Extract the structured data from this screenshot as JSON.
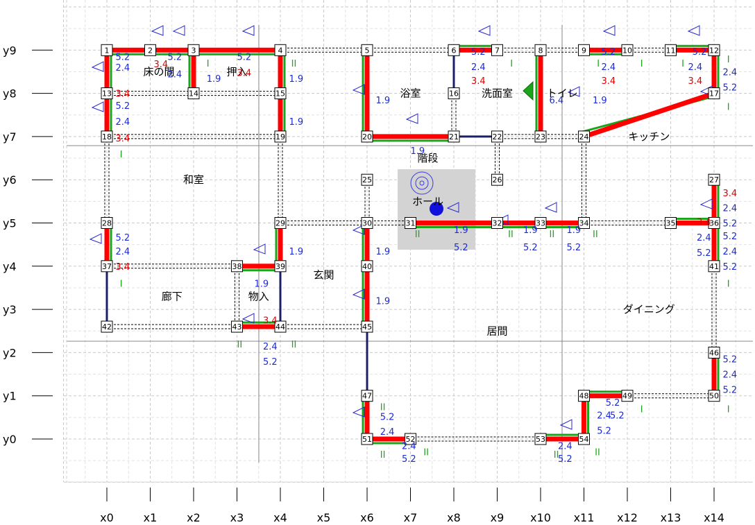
{
  "axes": {
    "x": [
      "x0",
      "x1",
      "x2",
      "x3",
      "x4",
      "x5",
      "x6",
      "x7",
      "x8",
      "x9",
      "x10",
      "x11",
      "x12",
      "x13",
      "x14"
    ],
    "y": [
      "y0",
      "y1",
      "y2",
      "y3",
      "y4",
      "y5",
      "y6",
      "y7",
      "y8",
      "y9"
    ]
  },
  "nodes": [
    {
      "id": "1",
      "gx": 0,
      "gy": 9
    },
    {
      "id": "2",
      "gx": 1,
      "gy": 9
    },
    {
      "id": "3",
      "gx": 2,
      "gy": 9
    },
    {
      "id": "4",
      "gx": 4,
      "gy": 9
    },
    {
      "id": "5",
      "gx": 6,
      "gy": 9
    },
    {
      "id": "6",
      "gx": 8,
      "gy": 9
    },
    {
      "id": "7",
      "gx": 9,
      "gy": 9
    },
    {
      "id": "8",
      "gx": 10,
      "gy": 9
    },
    {
      "id": "9",
      "gx": 11,
      "gy": 9
    },
    {
      "id": "10",
      "gx": 12,
      "gy": 9
    },
    {
      "id": "11",
      "gx": 13,
      "gy": 9
    },
    {
      "id": "12",
      "gx": 14,
      "gy": 9
    },
    {
      "id": "13",
      "gx": 0,
      "gy": 8
    },
    {
      "id": "14",
      "gx": 2,
      "gy": 8
    },
    {
      "id": "15",
      "gx": 4,
      "gy": 8
    },
    {
      "id": "16",
      "gx": 8,
      "gy": 8
    },
    {
      "id": "17",
      "gx": 14,
      "gy": 8
    },
    {
      "id": "18",
      "gx": 0,
      "gy": 7
    },
    {
      "id": "19",
      "gx": 4,
      "gy": 7
    },
    {
      "id": "20",
      "gx": 6,
      "gy": 7
    },
    {
      "id": "21",
      "gx": 8,
      "gy": 7
    },
    {
      "id": "22",
      "gx": 9,
      "gy": 7
    },
    {
      "id": "23",
      "gx": 10,
      "gy": 7
    },
    {
      "id": "24",
      "gx": 11,
      "gy": 7
    },
    {
      "id": "25",
      "gx": 6,
      "gy": 6
    },
    {
      "id": "26",
      "gx": 9,
      "gy": 6
    },
    {
      "id": "27",
      "gx": 14,
      "gy": 6
    },
    {
      "id": "28",
      "gx": 0,
      "gy": 5
    },
    {
      "id": "29",
      "gx": 4,
      "gy": 5
    },
    {
      "id": "30",
      "gx": 6,
      "gy": 5
    },
    {
      "id": "31",
      "gx": 7,
      "gy": 5
    },
    {
      "id": "32",
      "gx": 9,
      "gy": 5
    },
    {
      "id": "33",
      "gx": 10,
      "gy": 5
    },
    {
      "id": "34",
      "gx": 11,
      "gy": 5
    },
    {
      "id": "35",
      "gx": 13,
      "gy": 5
    },
    {
      "id": "36",
      "gx": 14,
      "gy": 5
    },
    {
      "id": "37",
      "gx": 0,
      "gy": 4
    },
    {
      "id": "38",
      "gx": 3,
      "gy": 4
    },
    {
      "id": "39",
      "gx": 4,
      "gy": 4
    },
    {
      "id": "40",
      "gx": 6,
      "gy": 4
    },
    {
      "id": "41",
      "gx": 14,
      "gy": 4
    },
    {
      "id": "42",
      "gx": 0,
      "gy": 2.6
    },
    {
      "id": "43",
      "gx": 3,
      "gy": 2.6
    },
    {
      "id": "44",
      "gx": 4,
      "gy": 2.6
    },
    {
      "id": "45",
      "gx": 6,
      "gy": 2.6
    },
    {
      "id": "46",
      "gx": 14,
      "gy": 2
    },
    {
      "id": "47",
      "gx": 6,
      "gy": 1
    },
    {
      "id": "48",
      "gx": 11,
      "gy": 1
    },
    {
      "id": "49",
      "gx": 12,
      "gy": 1
    },
    {
      "id": "50",
      "gx": 14,
      "gy": 1
    },
    {
      "id": "51",
      "gx": 6,
      "gy": 0
    },
    {
      "id": "52",
      "gx": 7,
      "gy": 0
    },
    {
      "id": "53",
      "gx": 10,
      "gy": 0
    },
    {
      "id": "54",
      "gx": 11,
      "gy": 0
    }
  ],
  "rooms": [
    {
      "label": "床の間",
      "gx": 1.2,
      "gy": 8.5
    },
    {
      "label": "押入",
      "gx": 3.0,
      "gy": 8.5
    },
    {
      "label": "浴室",
      "gx": 7.0,
      "gy": 8.0
    },
    {
      "label": "洗面室",
      "gx": 9.0,
      "gy": 8.0
    },
    {
      "label": "トイレ",
      "gx": 10.5,
      "gy": 8.0
    },
    {
      "label": "キッチン",
      "gx": 12.5,
      "gy": 7.0
    },
    {
      "label": "階段",
      "gx": 7.4,
      "gy": 6.5
    },
    {
      "label": "和室",
      "gx": 2.0,
      "gy": 6.0
    },
    {
      "label": "ホール",
      "gx": 7.4,
      "gy": 5.5
    },
    {
      "label": "玄関",
      "gx": 5.0,
      "gy": 3.8
    },
    {
      "label": "廊下",
      "gx": 1.5,
      "gy": 3.3
    },
    {
      "label": "物入",
      "gx": 3.5,
      "gy": 3.3
    },
    {
      "label": "ダイニング",
      "gx": 12.5,
      "gy": 3.0
    },
    {
      "label": "居間",
      "gx": 9.0,
      "gy": 2.5
    }
  ],
  "walls_red": [
    [
      "1",
      "4"
    ],
    [
      "6",
      "7"
    ],
    [
      "9",
      "10"
    ],
    [
      "11",
      "12"
    ],
    [
      "1",
      "18"
    ],
    [
      "3",
      "14"
    ],
    [
      "4",
      "19"
    ],
    [
      "5",
      "20"
    ],
    [
      "20",
      "21"
    ],
    [
      "8",
      "23"
    ],
    [
      "12",
      "17"
    ],
    [
      "17",
      "24"
    ],
    [
      "28",
      "37"
    ],
    [
      "29",
      "39"
    ],
    [
      "38",
      "39"
    ],
    [
      "30",
      "45"
    ],
    [
      "31",
      "34"
    ],
    [
      "35",
      "36"
    ],
    [
      "27",
      "41"
    ],
    [
      "43",
      "44"
    ],
    [
      "46",
      "50"
    ],
    [
      "47",
      "51"
    ],
    [
      "51",
      "52"
    ],
    [
      "53",
      "54"
    ],
    [
      "48",
      "54"
    ],
    [
      "48",
      "49"
    ]
  ],
  "walls_navy": [
    [
      "6",
      "16"
    ],
    [
      "21",
      "22"
    ],
    [
      "37",
      "42"
    ],
    [
      "39",
      "44"
    ],
    [
      "45",
      "47"
    ]
  ],
  "walls_dashed": [
    [
      "4",
      "5"
    ],
    [
      "5",
      "6"
    ],
    [
      "7",
      "8"
    ],
    [
      "8",
      "9"
    ],
    [
      "10",
      "11"
    ],
    [
      "13",
      "15"
    ],
    [
      "18",
      "19"
    ],
    [
      "22",
      "23"
    ],
    [
      "23",
      "24"
    ],
    [
      "24",
      "34"
    ],
    [
      "34",
      "35"
    ],
    [
      "29",
      "30"
    ],
    [
      "30",
      "31"
    ],
    [
      "16",
      "21"
    ],
    [
      "13",
      "18"
    ],
    [
      "15",
      "19"
    ],
    [
      "19",
      "29"
    ],
    [
      "25",
      "30"
    ],
    [
      "22",
      "26"
    ],
    [
      "18",
      "28"
    ],
    [
      "37",
      "38"
    ],
    [
      "38",
      "43"
    ],
    [
      "42",
      "43"
    ],
    [
      "44",
      "45"
    ],
    [
      "49",
      "50"
    ],
    [
      "52",
      "53"
    ],
    [
      "36",
      "41"
    ],
    [
      "41",
      "46"
    ]
  ],
  "annotations": [
    {
      "t": "5.2",
      "c": "#1c2ad1",
      "gx": 0.2,
      "gy": 8.85
    },
    {
      "t": "2.4",
      "c": "#1c2ad1",
      "gx": 0.2,
      "gy": 8.6
    },
    {
      "t": "3.4",
      "c": "#e00000",
      "gx": 1.08,
      "gy": 8.68
    },
    {
      "t": "5.2",
      "c": "#1c2ad1",
      "gx": 1.4,
      "gy": 8.85
    },
    {
      "t": "2.4",
      "c": "#1c2ad1",
      "gx": 1.4,
      "gy": 8.45
    },
    {
      "t": "1.9",
      "c": "#1c2ad1",
      "gx": 2.3,
      "gy": 8.35
    },
    {
      "t": "5.2",
      "c": "#1c2ad1",
      "gx": 3.0,
      "gy": 8.85
    },
    {
      "t": "3.4",
      "c": "#e00000",
      "gx": 3.0,
      "gy": 8.48
    },
    {
      "t": "1.9",
      "c": "#1c2ad1",
      "gx": 4.2,
      "gy": 8.35
    },
    {
      "t": "3.4",
      "c": "#e00000",
      "gx": 0.2,
      "gy": 8.0
    },
    {
      "t": "5.2",
      "c": "#1c2ad1",
      "gx": 0.2,
      "gy": 7.72
    },
    {
      "t": "2.4",
      "c": "#1c2ad1",
      "gx": 0.2,
      "gy": 7.35
    },
    {
      "t": "3.4",
      "c": "#e00000",
      "gx": 0.2,
      "gy": 6.97
    },
    {
      "t": "1.9",
      "c": "#1c2ad1",
      "gx": 4.2,
      "gy": 7.35
    },
    {
      "t": "1.9",
      "c": "#1c2ad1",
      "gx": 6.2,
      "gy": 7.85
    },
    {
      "t": "5.2",
      "c": "#1c2ad1",
      "gx": 8.4,
      "gy": 8.97
    },
    {
      "t": "2.4",
      "c": "#1c2ad1",
      "gx": 8.4,
      "gy": 8.62
    },
    {
      "t": "3.4",
      "c": "#e00000",
      "gx": 8.4,
      "gy": 8.3
    },
    {
      "t": "6.4",
      "c": "#1c2ad1",
      "gx": 10.2,
      "gy": 7.85
    },
    {
      "t": "1.9",
      "c": "#1c2ad1",
      "gx": 11.2,
      "gy": 7.85
    },
    {
      "t": "5.2",
      "c": "#1c2ad1",
      "gx": 11.4,
      "gy": 8.97
    },
    {
      "t": "2.4",
      "c": "#1c2ad1",
      "gx": 11.4,
      "gy": 8.62
    },
    {
      "t": "3.4",
      "c": "#e00000",
      "gx": 11.4,
      "gy": 8.3
    },
    {
      "t": "5.2",
      "c": "#1c2ad1",
      "gx": 13.5,
      "gy": 8.97
    },
    {
      "t": "2.4",
      "c": "#1c2ad1",
      "gx": 13.4,
      "gy": 8.62
    },
    {
      "t": "3.4",
      "c": "#e00000",
      "gx": 13.4,
      "gy": 8.3
    },
    {
      "t": "2.4",
      "c": "#1c2ad1",
      "gx": 14.2,
      "gy": 8.5
    },
    {
      "t": "5.2",
      "c": "#1c2ad1",
      "gx": 14.2,
      "gy": 8.15
    },
    {
      "t": "1.9",
      "c": "#1c2ad1",
      "gx": 7.0,
      "gy": 6.68
    },
    {
      "t": "3.4",
      "c": "#e00000",
      "gx": 14.2,
      "gy": 5.7
    },
    {
      "t": "2.4",
      "c": "#1c2ad1",
      "gx": 14.2,
      "gy": 5.35
    },
    {
      "t": "5.2",
      "c": "#1c2ad1",
      "gx": 14.2,
      "gy": 5.0
    },
    {
      "t": "5.2",
      "c": "#1c2ad1",
      "gx": 14.2,
      "gy": 4.7
    },
    {
      "t": "2.4",
      "c": "#1c2ad1",
      "gx": 14.2,
      "gy": 4.35
    },
    {
      "t": "5.2",
      "c": "#1c2ad1",
      "gx": 14.2,
      "gy": 4.0
    },
    {
      "t": "2.4",
      "c": "#1c2ad1",
      "gx": 13.6,
      "gy": 4.67
    },
    {
      "t": "5.2",
      "c": "#1c2ad1",
      "gx": 13.6,
      "gy": 4.32
    },
    {
      "t": "3.4",
      "c": "#e00000",
      "gx": 13.6,
      "gy": 5.03
    },
    {
      "t": "5.2",
      "c": "#1c2ad1",
      "gx": 0.2,
      "gy": 4.67
    },
    {
      "t": "2.4",
      "c": "#1c2ad1",
      "gx": 0.2,
      "gy": 4.35
    },
    {
      "t": "3.4",
      "c": "#e00000",
      "gx": 0.2,
      "gy": 4.0
    },
    {
      "t": "1.9",
      "c": "#1c2ad1",
      "gx": 4.2,
      "gy": 4.35
    },
    {
      "t": "1.9",
      "c": "#1c2ad1",
      "gx": 3.4,
      "gy": 3.6
    },
    {
      "t": "1.9",
      "c": "#1c2ad1",
      "gx": 6.2,
      "gy": 4.35
    },
    {
      "t": "1.9",
      "c": "#1c2ad1",
      "gx": 6.2,
      "gy": 3.2
    },
    {
      "t": "1.9",
      "c": "#1c2ad1",
      "gx": 8.0,
      "gy": 4.85
    },
    {
      "t": "5.2",
      "c": "#1c2ad1",
      "gx": 8.0,
      "gy": 4.45
    },
    {
      "t": "1.9",
      "c": "#1c2ad1",
      "gx": 9.6,
      "gy": 4.85
    },
    {
      "t": "5.2",
      "c": "#1c2ad1",
      "gx": 9.6,
      "gy": 4.45
    },
    {
      "t": "1.9",
      "c": "#1c2ad1",
      "gx": 10.6,
      "gy": 4.85
    },
    {
      "t": "5.2",
      "c": "#1c2ad1",
      "gx": 10.6,
      "gy": 4.45
    },
    {
      "t": "3.4",
      "c": "#e00000",
      "gx": 3.6,
      "gy": 2.75
    },
    {
      "t": "2.4",
      "c": "#1c2ad1",
      "gx": 3.6,
      "gy": 2.15
    },
    {
      "t": "5.2",
      "c": "#1c2ad1",
      "gx": 3.6,
      "gy": 1.8
    },
    {
      "t": "5.2",
      "c": "#1c2ad1",
      "gx": 14.2,
      "gy": 1.85
    },
    {
      "t": "2.4",
      "c": "#1c2ad1",
      "gx": 14.2,
      "gy": 1.5
    },
    {
      "t": "5.2",
      "c": "#1c2ad1",
      "gx": 14.2,
      "gy": 1.15
    },
    {
      "t": "5.2",
      "c": "#1c2ad1",
      "gx": 11.5,
      "gy": 0.85
    },
    {
      "t": "2.4",
      "c": "#1c2ad1",
      "gx": 11.3,
      "gy": 0.55
    },
    {
      "t": "5.2",
      "c": "#1c2ad1",
      "gx": 11.6,
      "gy": 0.55
    },
    {
      "t": "5.2",
      "c": "#1c2ad1",
      "gx": 11.3,
      "gy": 0.2
    },
    {
      "t": "5.2",
      "c": "#1c2ad1",
      "gx": 6.3,
      "gy": 0.52
    },
    {
      "t": "2.4",
      "c": "#1c2ad1",
      "gx": 6.3,
      "gy": 0.18
    },
    {
      "t": "2.4",
      "c": "#1c2ad1",
      "gx": 6.8,
      "gy": -0.15
    },
    {
      "t": "5.2",
      "c": "#1c2ad1",
      "gx": 6.8,
      "gy": -0.45
    },
    {
      "t": "2.4",
      "c": "#1c2ad1",
      "gx": 10.4,
      "gy": -0.15
    },
    {
      "t": "5.2",
      "c": "#1c2ad1",
      "gx": 10.4,
      "gy": -0.45
    },
    {
      "t": "I",
      "c": "#1aa51a",
      "gx": 2.3,
      "gy": 8.7
    },
    {
      "t": "I",
      "c": "#1aa51a",
      "gx": 0.3,
      "gy": 6.6
    },
    {
      "t": "II",
      "c": "#1aa51a",
      "gx": 4.25,
      "gy": 8.7
    },
    {
      "t": "I",
      "c": "#1aa51a",
      "gx": 9.3,
      "gy": 8.7
    },
    {
      "t": "I",
      "c": "#1aa51a",
      "gx": 11.3,
      "gy": 8.7
    },
    {
      "t": "I",
      "c": "#1aa51a",
      "gx": 12.3,
      "gy": 8.7
    },
    {
      "t": "I",
      "c": "#1aa51a",
      "gx": 13.25,
      "gy": 8.7
    },
    {
      "t": "I",
      "c": "#1aa51a",
      "gx": 14.3,
      "gy": 8.8
    },
    {
      "t": "I",
      "c": "#1aa51a",
      "gx": 14.3,
      "gy": 7.7
    },
    {
      "t": "I",
      "c": "#1aa51a",
      "gx": 0.3,
      "gy": 3.6
    },
    {
      "t": "II",
      "c": "#1aa51a",
      "gx": 7.1,
      "gy": 4.75
    },
    {
      "t": "II",
      "c": "#1aa51a",
      "gx": 9.25,
      "gy": 4.75
    },
    {
      "t": "II",
      "c": "#1aa51a",
      "gx": 10.2,
      "gy": 4.75
    },
    {
      "t": "II",
      "c": "#1aa51a",
      "gx": 11.2,
      "gy": 4.75
    },
    {
      "t": "I",
      "c": "#1aa51a",
      "gx": 14.3,
      "gy": 3.6
    },
    {
      "t": "II",
      "c": "#1aa51a",
      "gx": 3.0,
      "gy": 2.2
    },
    {
      "t": "II",
      "c": "#1aa51a",
      "gx": 4.25,
      "gy": 2.2
    },
    {
      "t": "I",
      "c": "#1aa51a",
      "gx": 14.3,
      "gy": 0.7
    },
    {
      "t": "I",
      "c": "#1aa51a",
      "gx": 12.3,
      "gy": 0.7
    },
    {
      "t": "II",
      "c": "#1aa51a",
      "gx": 6.3,
      "gy": 0.75
    },
    {
      "t": "II",
      "c": "#1aa51a",
      "gx": 6.3,
      "gy": -0.35
    },
    {
      "t": "II",
      "c": "#1aa51a",
      "gx": 7.3,
      "gy": -0.3
    },
    {
      "t": "II",
      "c": "#1aa51a",
      "gx": 10.3,
      "gy": -0.35
    },
    {
      "t": "II",
      "c": "#1aa51a",
      "gx": 11.25,
      "gy": -0.3
    }
  ],
  "colors": {
    "wall_red": "#ff0000",
    "wall_navy": "#1b1f6b",
    "green": "#1aa51a",
    "blue_text": "#1c2ad1",
    "red_text": "#e00000",
    "grid": "#c8c8c8",
    "hall_box": "#d3d3d3"
  }
}
